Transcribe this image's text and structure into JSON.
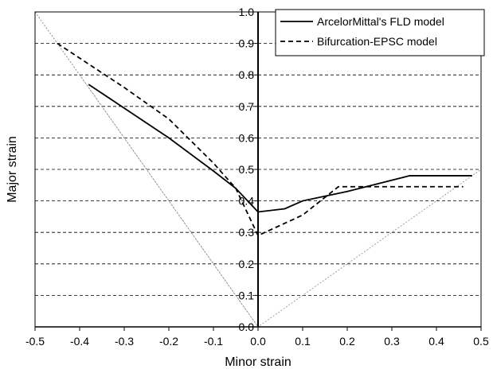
{
  "chart_data": {
    "type": "line",
    "xlabel": "Minor strain",
    "ylabel": "Major strain",
    "xlim": [
      -0.5,
      0.5
    ],
    "ylim": [
      0.0,
      1.0
    ],
    "x_ticks": [
      "-0.5",
      "-0.4",
      "-0.3",
      "-0.2",
      "-0.1",
      "0.0",
      "0.1",
      "0.2",
      "0.3",
      "0.4",
      "0.5"
    ],
    "y_ticks": [
      "0.0",
      "0.1",
      "0.2",
      "0.3",
      "0.4",
      "0.5",
      "0.6",
      "0.7",
      "0.8",
      "0.9",
      "1.0"
    ],
    "grid": "horizontal dashed",
    "legend_position": "top-right",
    "series": [
      {
        "name": "ArcelorMittal's FLD model",
        "style": "solid",
        "color": "#000000",
        "x": [
          -0.38,
          -0.2,
          -0.1,
          -0.05,
          0.0,
          0.06,
          0.1,
          0.2,
          0.34,
          0.48
        ],
        "y": [
          0.77,
          0.6,
          0.495,
          0.44,
          0.365,
          0.375,
          0.4,
          0.43,
          0.48,
          0.48
        ]
      },
      {
        "name": "Bifurcation-EPSC model",
        "style": "dashed",
        "color": "#000000",
        "x": [
          -0.45,
          -0.3,
          -0.2,
          -0.1,
          -0.05,
          0.0,
          0.1,
          0.18,
          0.46
        ],
        "y": [
          0.9,
          0.76,
          0.66,
          0.52,
          0.44,
          0.29,
          0.355,
          0.445,
          0.445
        ]
      }
    ],
    "reference_lines": [
      {
        "style": "thin dotted",
        "color": "#888888",
        "x": [
          -0.5,
          0.0,
          0.5
        ],
        "y": [
          1.0,
          0.0,
          0.5
        ]
      },
      {
        "style": "thin dotted",
        "color": "#888888",
        "x": [
          -0.5,
          -0.4
        ],
        "y": [
          1.0,
          0.8
        ]
      },
      {
        "style": "thin dotted",
        "color": "#888888",
        "x": [
          -0.4,
          0.0
        ],
        "y": [
          0.8,
          0.0
        ]
      }
    ]
  }
}
